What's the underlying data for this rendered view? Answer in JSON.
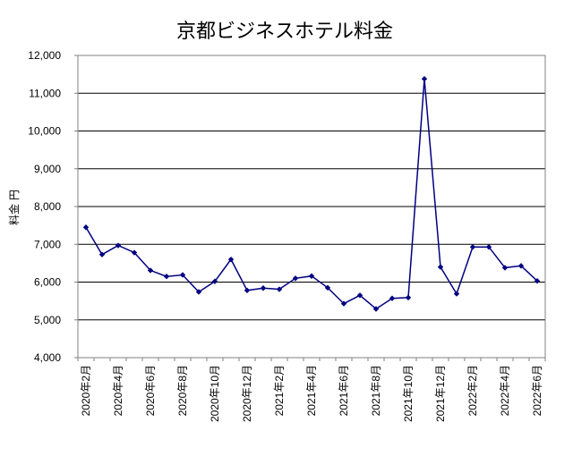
{
  "chart_data": {
    "type": "line",
    "title": "京都ビジネスホテル料金",
    "ylabel": "料金 円",
    "xlabel": "",
    "ylim": [
      4000,
      12000
    ],
    "y_ticks": [
      "4,000",
      "5,000",
      "6,000",
      "7,000",
      "8,000",
      "9,000",
      "10,000",
      "11,000",
      "12,000"
    ],
    "x_tick_labels": [
      "2020年2月",
      "2020年4月",
      "2020年6月",
      "2020年8月",
      "2020年10月",
      "2020年12月",
      "2021年2月",
      "2021年4月",
      "2021年6月",
      "2021年8月",
      "2021年10月",
      "2021年12月",
      "2022年2月",
      "2022年4月",
      "2022年6月"
    ],
    "x": [
      "2020-02",
      "2020-03",
      "2020-04",
      "2020-05",
      "2020-06",
      "2020-07",
      "2020-08",
      "2020-09",
      "2020-10",
      "2020-11",
      "2020-12",
      "2021-01",
      "2021-02",
      "2021-03",
      "2021-04",
      "2021-05",
      "2021-06",
      "2021-07",
      "2021-08",
      "2021-09",
      "2021-10",
      "2021-11",
      "2021-12",
      "2022-01",
      "2022-02",
      "2022-03",
      "2022-04",
      "2022-05",
      "2022-06"
    ],
    "series": [
      {
        "values": [
          7450,
          6730,
          6970,
          6780,
          6310,
          6150,
          6190,
          5740,
          6020,
          6600,
          5780,
          5840,
          5810,
          6100,
          6160,
          5850,
          5430,
          5650,
          5290,
          5570,
          5590,
          11380,
          6400,
          5690,
          6930,
          6930,
          6380,
          6430,
          6030
        ]
      }
    ],
    "grid": true,
    "colors": {
      "line": "#000080",
      "marker": "#000080",
      "grid": "#000000",
      "axis": "#808080"
    }
  }
}
